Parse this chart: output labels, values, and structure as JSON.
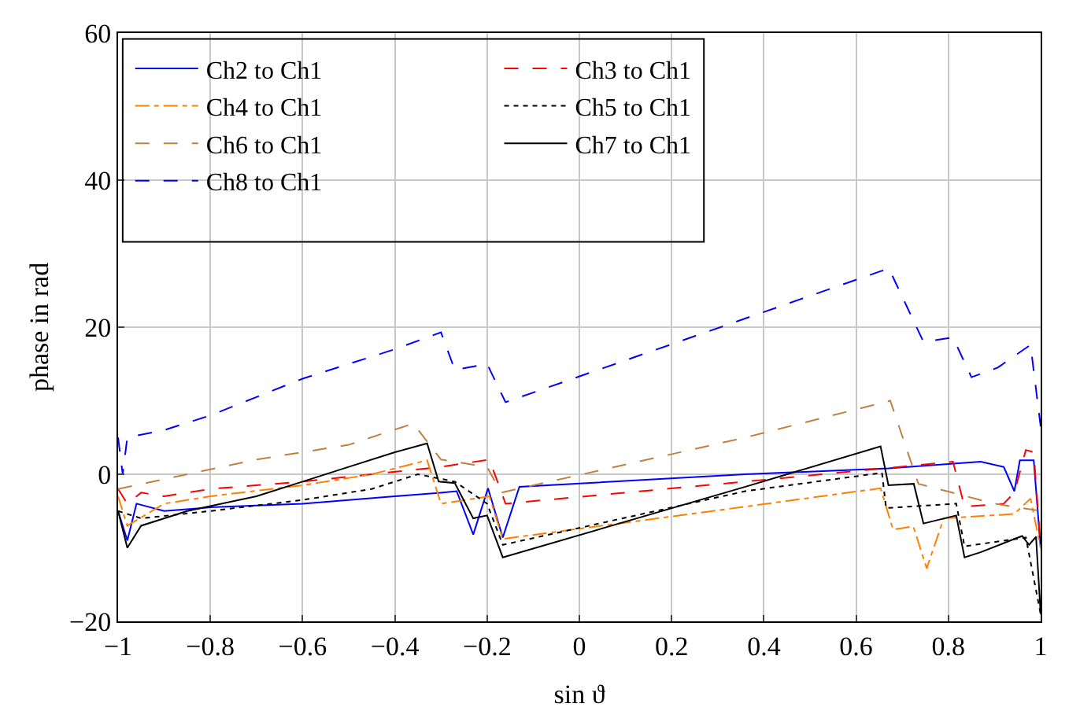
{
  "chart_data": {
    "type": "line",
    "xlabel": "sin ϑ",
    "ylabel": "phase in rad",
    "xlim": [
      -1,
      1
    ],
    "ylim": [
      -20,
      60
    ],
    "xticks": [
      {
        "value": -1,
        "label": "−1"
      },
      {
        "value": -0.8,
        "label": "−0.8"
      },
      {
        "value": -0.6,
        "label": "−0.6"
      },
      {
        "value": -0.4,
        "label": "−0.4"
      },
      {
        "value": -0.2,
        "label": "−0.2"
      },
      0,
      0.2,
      0.4,
      0.6,
      0.8,
      1
    ],
    "yticks": [
      {
        "value": -20,
        "label": "−20"
      },
      0,
      20,
      40,
      60
    ],
    "grid": true,
    "legend": "top left",
    "marker": "none",
    "series": [
      {
        "name": "Ch2 to Ch1",
        "color": "#0000ff",
        "line_style": "solid",
        "x": [
          -1,
          -0.98,
          -0.96,
          -0.9,
          -0.8,
          -0.6,
          -0.4,
          -0.3,
          -0.266,
          -0.23,
          -0.198,
          -0.166,
          -0.13,
          0.36,
          0.67,
          0.87,
          0.92,
          0.943,
          0.955,
          0.985,
          1
        ],
        "values": [
          -5,
          -9,
          -4,
          -5,
          -4.5,
          -4,
          -3,
          -2.5,
          -2.3,
          -8.2,
          -1.9,
          -8.6,
          -1.7,
          0,
          0.8,
          1.7,
          1,
          -2.3,
          1.9,
          1.9,
          -10
        ]
      },
      {
        "name": "Ch3 to Ch1",
        "color": "#ff0000",
        "line_style": "dashed",
        "x": [
          -1,
          -0.98,
          -0.95,
          -0.9,
          -0.8,
          -0.6,
          -0.45,
          -0.3,
          -0.195,
          -0.16,
          0.36,
          0.81,
          0.835,
          0.92,
          0.943,
          0.968,
          0.985,
          1
        ],
        "values": [
          -2,
          -4,
          -2.5,
          -3,
          -2,
          -1,
          0,
          1,
          2,
          -4,
          -1,
          1.7,
          -4.4,
          -4,
          -2.5,
          3.3,
          3,
          -10
        ]
      },
      {
        "name": "Ch4 to Ch1",
        "color": "#ff8000",
        "line_style": "dashdot",
        "x": [
          -1,
          -0.98,
          -0.9,
          -0.8,
          -0.6,
          -0.45,
          -0.33,
          -0.3,
          -0.195,
          -0.166,
          0.36,
          0.653,
          0.68,
          0.724,
          0.753,
          0.79,
          0.943,
          0.978,
          1
        ],
        "values": [
          -3,
          -7,
          -4,
          -3,
          -1.5,
          0,
          1.9,
          -4,
          -3,
          -8.8,
          -4.4,
          -1.9,
          -7.5,
          -7.1,
          -12.8,
          -6,
          -5.4,
          -3.3,
          -10
        ]
      },
      {
        "name": "Ch5 to Ch1",
        "color": "#000000",
        "line_style": "dotted",
        "x": [
          -1,
          -0.95,
          -0.8,
          -0.6,
          -0.45,
          -0.35,
          -0.27,
          -0.2,
          -0.166,
          0.36,
          0.656,
          0.665,
          0.817,
          0.835,
          0.968,
          1
        ],
        "values": [
          -5,
          -6,
          -5,
          -3.5,
          -2,
          0,
          -1,
          -4,
          -9.6,
          -2.3,
          0.2,
          -4.6,
          -4,
          -9.8,
          -8.6,
          -19
        ]
      },
      {
        "name": "Ch6 to Ch1",
        "color": "#c08040",
        "line_style": "dashed",
        "x": [
          -1,
          -0.85,
          -0.7,
          -0.5,
          -0.36,
          -0.3,
          -0.2,
          -0.17,
          0.36,
          0.674,
          0.735,
          0.9,
          1
        ],
        "values": [
          -2,
          0,
          2,
          4,
          6.9,
          2,
          1,
          -2.5,
          5,
          10,
          -1.3,
          -4,
          -5
        ]
      },
      {
        "name": "Ch7 to Ch1",
        "color": "#000000",
        "line_style": "solid",
        "x": [
          -1,
          -0.98,
          -0.95,
          -0.85,
          -0.7,
          -0.6,
          -0.5,
          -0.4,
          -0.33,
          -0.305,
          -0.27,
          -0.23,
          -0.2,
          -0.166,
          0.36,
          0.653,
          0.67,
          0.725,
          0.746,
          0.817,
          0.835,
          0.87,
          0.943,
          0.96,
          0.975,
          0.99,
          1
        ],
        "values": [
          -5,
          -10,
          -7,
          -5,
          -3,
          -1,
          1,
          3,
          4.2,
          -1,
          -1.2,
          -6,
          -5.6,
          -11.3,
          -1.7,
          3.8,
          -1.5,
          -1.3,
          -6.7,
          -5.6,
          -11.3,
          -10.6,
          -8.8,
          -8.4,
          -9.6,
          -8.5,
          -19
        ]
      },
      {
        "name": "Ch8 to Ch1",
        "color": "#0000ff",
        "line_style": "dashed",
        "x": [
          -1,
          -0.99,
          -0.98,
          -0.9,
          -0.8,
          -0.7,
          -0.6,
          -0.5,
          -0.4,
          -0.3,
          -0.27,
          -0.2,
          -0.16,
          0.671,
          0.746,
          0.81,
          0.85,
          0.907,
          0.978,
          1
        ],
        "values": [
          5,
          0,
          5,
          6,
          8,
          10.5,
          13,
          15,
          17,
          19.3,
          14.2,
          15,
          9.8,
          28,
          18,
          18.6,
          13.2,
          14.5,
          17.6,
          6.5
        ]
      }
    ]
  }
}
